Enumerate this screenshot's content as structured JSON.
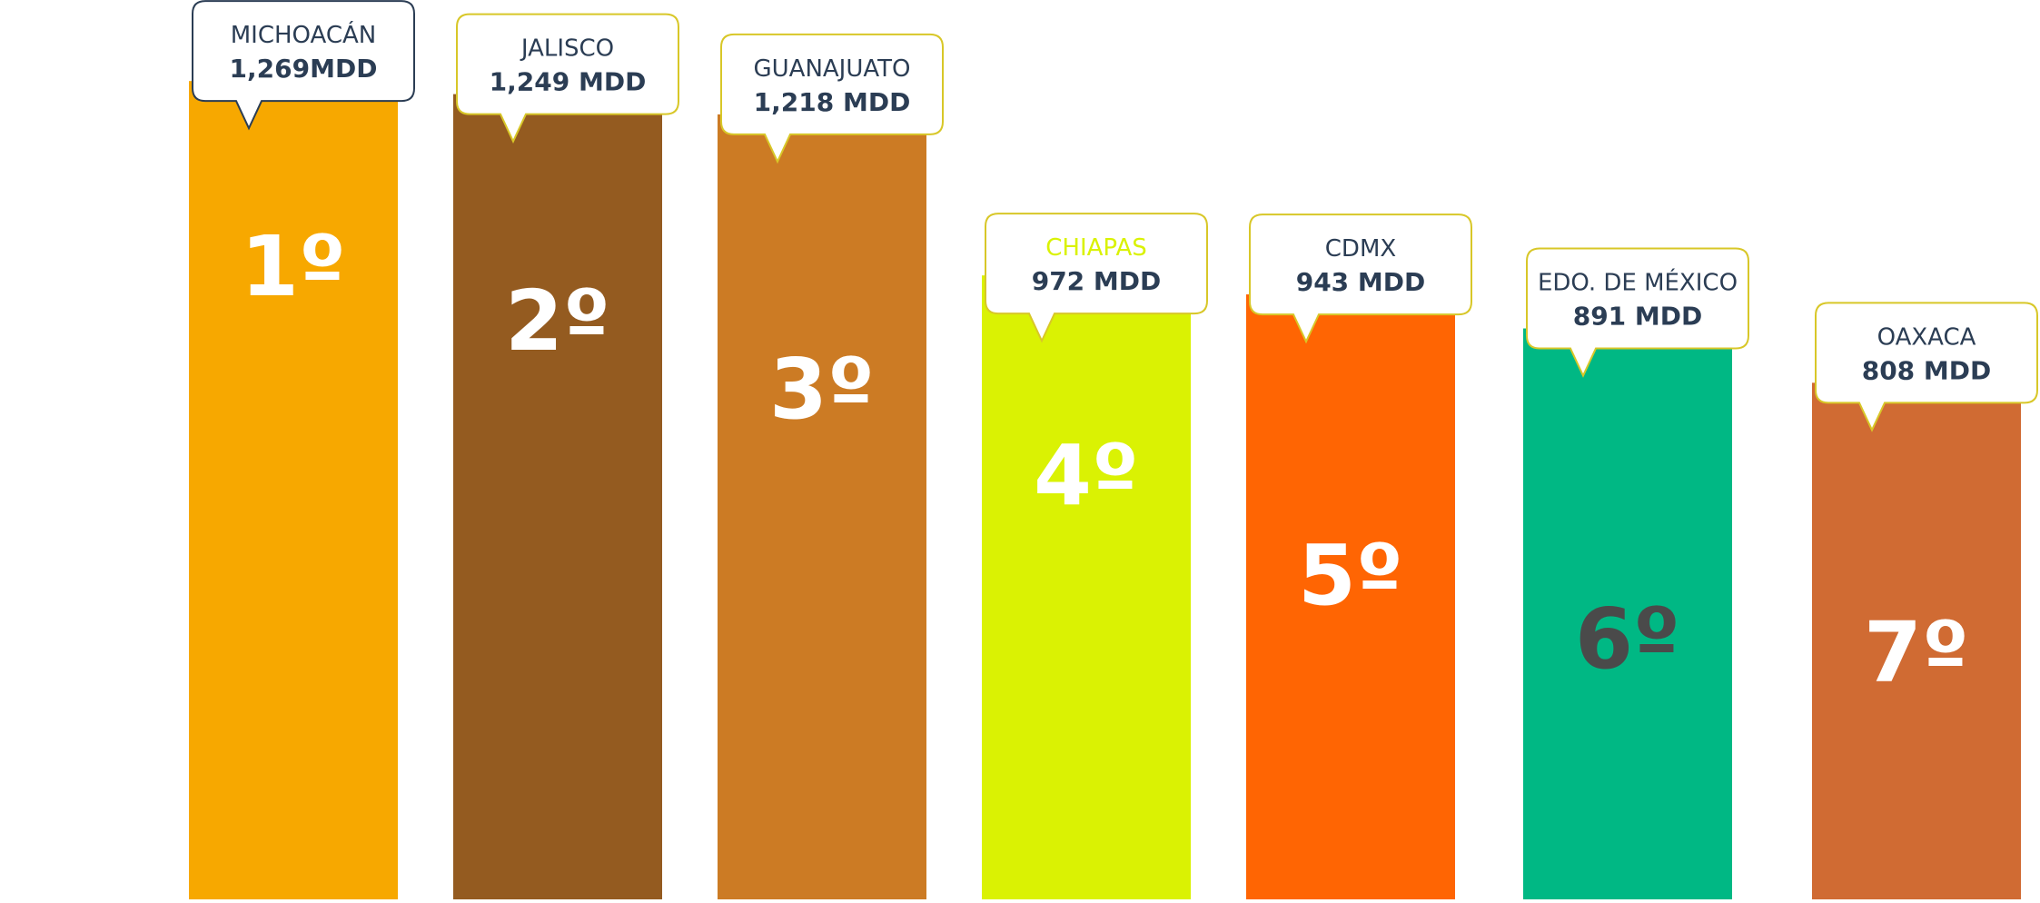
{
  "chart_data": {
    "type": "bar",
    "categories": [
      "MICHOACÁN",
      "JALISCO",
      "GUANAJUATO",
      "CHIAPAS",
      "CDMX",
      "EDO. DE MÉXICO",
      "OAXACA"
    ],
    "values": [
      1269,
      1249,
      1218,
      972,
      943,
      891,
      808
    ],
    "value_labels": [
      "1,269MDD",
      "1,249 MDD",
      "1,218 MDD",
      "972 MDD",
      "943 MDD",
      "891 MDD",
      "808 MDD"
    ],
    "rank_labels": [
      "1º",
      "2º",
      "3º",
      "4º",
      "5º",
      "6º",
      "7º"
    ],
    "colors": [
      "#F7A800",
      "#945B20",
      "#CC7B24",
      "#DAF203",
      "#FF6503",
      "#00B884",
      "#D06B33"
    ],
    "callout_border_colors": [
      "#2B3D54",
      "#D8C728",
      "#D8C728",
      "#D8C728",
      "#D8C728",
      "#D8C728",
      "#D8C728"
    ],
    "state_text_colors": [
      "#2B3D54",
      "#2B3D54",
      "#2B3D54",
      "#DAF203",
      "#2B3D54",
      "#2B3D54",
      "#2B3D54"
    ],
    "value_text_color": "#2B3D54",
    "rank_text_colors": [
      "#FFFFFF",
      "#FFFFFF",
      "#FFFFFF",
      "#FFFFFF",
      "#FFFFFF",
      "#4A4A4A",
      "#FFFFFF"
    ],
    "grid": false,
    "legend": "none"
  }
}
